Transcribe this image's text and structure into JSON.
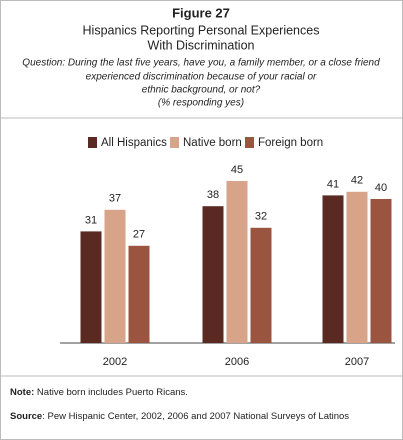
{
  "chart_data": {
    "type": "bar",
    "figure_label": "Figure 27",
    "title": [
      "Hispanics Reporting Personal Experiences",
      "With Discrimination"
    ],
    "question": [
      "Question: During the last five years, have you, a family member, or a close friend",
      "experienced discrimination because of your racial or",
      "ethnic background, or not?",
      "(% responding yes)"
    ],
    "categories": [
      "2002",
      "2006",
      "2007"
    ],
    "series": [
      {
        "name": "All Hispanics",
        "color": "#5a2a22",
        "values": [
          31,
          38,
          41
        ]
      },
      {
        "name": "Native born",
        "color": "#d7a389",
        "values": [
          37,
          45,
          42
        ]
      },
      {
        "name": "Foreign born",
        "color": "#9a5440",
        "values": [
          27,
          32,
          40
        ]
      }
    ],
    "note": {
      "label": "Note:",
      "text": "Native born includes Puerto Ricans."
    },
    "source": {
      "label": "Source",
      "text": ": Pew Hispanic Center, 2002, 2006 and 2007 National Surveys of Latinos"
    }
  }
}
